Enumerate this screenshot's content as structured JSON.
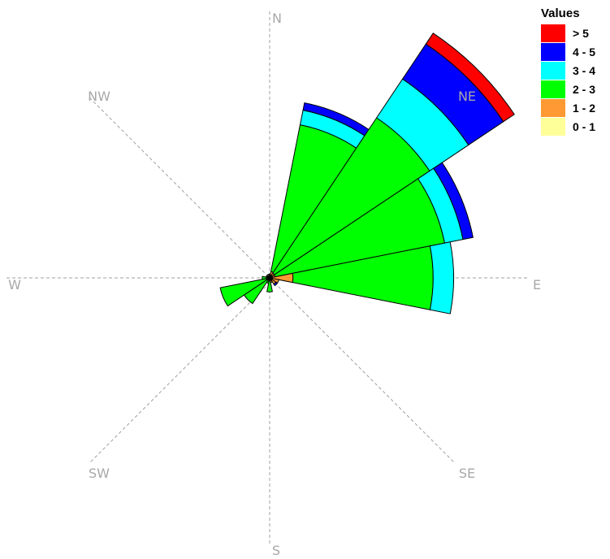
{
  "chart_data": {
    "type": "wind-rose",
    "title": "",
    "directions": [
      "N",
      "NE",
      "E",
      "SE",
      "S",
      "SW",
      "W",
      "NW"
    ],
    "legend": {
      "title": "Values",
      "placement": "top-right",
      "items": [
        {
          "label": "> 5",
          "color": "#ff0000"
        },
        {
          "label": "4 - 5",
          "color": "#0000ff"
        },
        {
          "label": "3 - 4",
          "color": "#00ffff"
        },
        {
          "label": "2 - 3",
          "color": "#00ff00"
        },
        {
          "label": "1 - 2",
          "color": "#ff9933"
        },
        {
          "label": "0 - 1",
          "color": "#ffff99"
        }
      ]
    },
    "bins": [
      "0 - 1",
      "1 - 2",
      "2 - 3",
      "3 - 4",
      "4 - 5",
      "> 5"
    ],
    "sectors": [
      {
        "direction_deg": 0,
        "values": [
          0.2,
          0.2,
          0.0,
          0.0,
          0.0,
          0.0
        ]
      },
      {
        "direction_deg": 22.5,
        "values": [
          0.3,
          0.4,
          16.0,
          1.6,
          0.8,
          0.0
        ]
      },
      {
        "direction_deg": 45,
        "values": [
          0.3,
          0.3,
          20.0,
          5.0,
          4.5,
          1.4
        ]
      },
      {
        "direction_deg": 67.5,
        "values": [
          0.3,
          0.3,
          18.5,
          2.0,
          1.1,
          0.0
        ]
      },
      {
        "direction_deg": 90,
        "values": [
          0.3,
          2.2,
          15.0,
          2.2,
          0.0,
          0.0
        ]
      },
      {
        "direction_deg": 112.5,
        "values": [
          0.3,
          0.7,
          0.0,
          0.0,
          0.0,
          0.0
        ]
      },
      {
        "direction_deg": 135,
        "values": [
          0.3,
          0.5,
          0.0,
          0.0,
          0.2,
          0.0
        ]
      },
      {
        "direction_deg": 157.5,
        "values": [
          0.3,
          0.2,
          0.0,
          0.0,
          0.0,
          0.0
        ]
      },
      {
        "direction_deg": 180,
        "values": [
          0.2,
          0.1,
          1.2,
          0.0,
          0.0,
          0.0
        ]
      },
      {
        "direction_deg": 202.5,
        "values": [
          0.2,
          0.2,
          0.2,
          0.0,
          0.0,
          0.0
        ]
      },
      {
        "direction_deg": 225,
        "values": [
          0.2,
          0.1,
          3.0,
          0.0,
          0.0,
          0.0
        ]
      },
      {
        "direction_deg": 247.5,
        "values": [
          0.2,
          0.2,
          5.0,
          0.0,
          0.0,
          0.0
        ]
      },
      {
        "direction_deg": 270,
        "values": [
          0.2,
          0.1,
          0.5,
          0.0,
          0.0,
          0.0
        ]
      },
      {
        "direction_deg": 292.5,
        "values": [
          0.2,
          0.2,
          0.0,
          0.0,
          0.0,
          0.0
        ]
      },
      {
        "direction_deg": 315,
        "values": [
          0.2,
          0.1,
          0.0,
          0.0,
          0.0,
          0.0
        ]
      },
      {
        "direction_deg": 337.5,
        "values": [
          0.2,
          0.2,
          0.0,
          0.0,
          0.0,
          0.0
        ]
      }
    ],
    "grid": true
  }
}
